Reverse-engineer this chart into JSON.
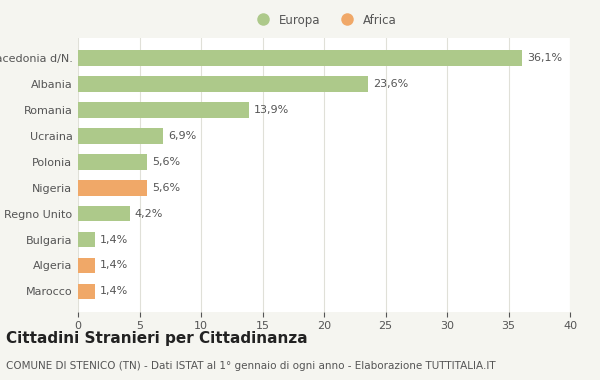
{
  "categories": [
    "Macedonia d/N.",
    "Albania",
    "Romania",
    "Ucraina",
    "Polonia",
    "Nigeria",
    "Regno Unito",
    "Bulgaria",
    "Algeria",
    "Marocco"
  ],
  "values": [
    36.1,
    23.6,
    13.9,
    6.9,
    5.6,
    5.6,
    4.2,
    1.4,
    1.4,
    1.4
  ],
  "labels": [
    "36,1%",
    "23,6%",
    "13,9%",
    "6,9%",
    "5,6%",
    "5,6%",
    "4,2%",
    "1,4%",
    "1,4%",
    "1,4%"
  ],
  "colors": [
    "#adc98a",
    "#adc98a",
    "#adc98a",
    "#adc98a",
    "#adc98a",
    "#f0a868",
    "#adc98a",
    "#adc98a",
    "#f0a868",
    "#f0a868"
  ],
  "continent": [
    "Europa",
    "Europa",
    "Europa",
    "Europa",
    "Europa",
    "Africa",
    "Europa",
    "Europa",
    "Africa",
    "Africa"
  ],
  "europa_color": "#adc98a",
  "africa_color": "#f0a868",
  "bg_color": "#f5f5f0",
  "plot_bg_color": "#ffffff",
  "title": "Cittadini Stranieri per Cittadinanza",
  "subtitle": "COMUNE DI STENICO (TN) - Dati ISTAT al 1° gennaio di ogni anno - Elaborazione TUTTITALIA.IT",
  "xlim": [
    0,
    40
  ],
  "xticks": [
    0,
    5,
    10,
    15,
    20,
    25,
    30,
    35,
    40
  ],
  "grid_color": "#e0e0d8",
  "text_color": "#555555",
  "label_fontsize": 8,
  "tick_fontsize": 8,
  "title_fontsize": 11,
  "subtitle_fontsize": 7.5
}
